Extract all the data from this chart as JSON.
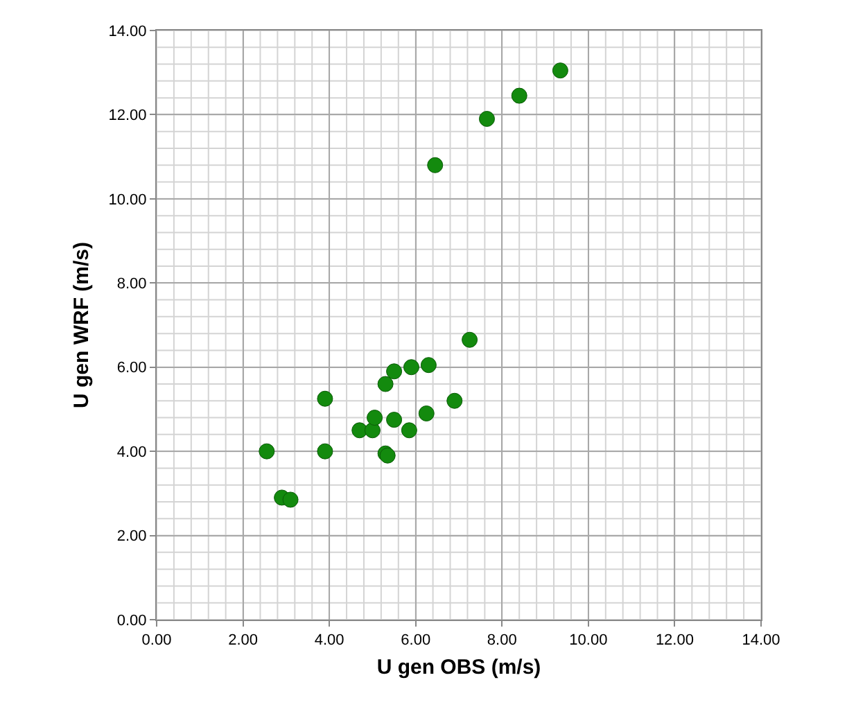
{
  "chart_data": {
    "type": "scatter",
    "xlabel": "U gen OBS (m/s)",
    "ylabel": "U gen WRF (m/s)",
    "x": [
      2.55,
      2.9,
      3.1,
      3.9,
      3.9,
      4.7,
      5.0,
      5.05,
      5.3,
      5.5,
      5.3,
      5.35,
      5.5,
      5.85,
      5.9,
      6.3,
      6.25,
      6.9,
      7.25,
      6.45,
      7.65,
      8.4,
      9.35
    ],
    "series": [
      {
        "color": "#138a0e",
        "values": [
          4.0,
          2.9,
          2.85,
          5.25,
          4.0,
          4.5,
          4.5,
          4.8,
          5.6,
          5.9,
          3.95,
          3.9,
          4.75,
          4.5,
          6.0,
          6.05,
          4.9,
          5.2,
          6.65,
          10.8,
          11.9,
          12.45,
          13.05
        ]
      }
    ],
    "xlim": [
      0,
      14
    ],
    "ylim": [
      0,
      14
    ],
    "xticks": [
      {
        "value": 0,
        "label": "0.00"
      },
      {
        "value": 2,
        "label": "2.00"
      },
      {
        "value": 4,
        "label": "4.00"
      },
      {
        "value": 6,
        "label": "6.00"
      },
      {
        "value": 8,
        "label": "8.00"
      },
      {
        "value": 10,
        "label": "10.00"
      },
      {
        "value": 12,
        "label": "12.00"
      },
      {
        "value": 14,
        "label": "14.00"
      }
    ],
    "yticks": [
      {
        "value": 0,
        "label": "0.00"
      },
      {
        "value": 2,
        "label": "2.00"
      },
      {
        "value": 4,
        "label": "4.00"
      },
      {
        "value": 6,
        "label": "6.00"
      },
      {
        "value": 8,
        "label": "8.00"
      },
      {
        "value": 10,
        "label": "10.00"
      },
      {
        "value": 12,
        "label": "12.00"
      },
      {
        "value": 14,
        "label": "14.00"
      }
    ],
    "grid": true,
    "marker": "circle"
  }
}
